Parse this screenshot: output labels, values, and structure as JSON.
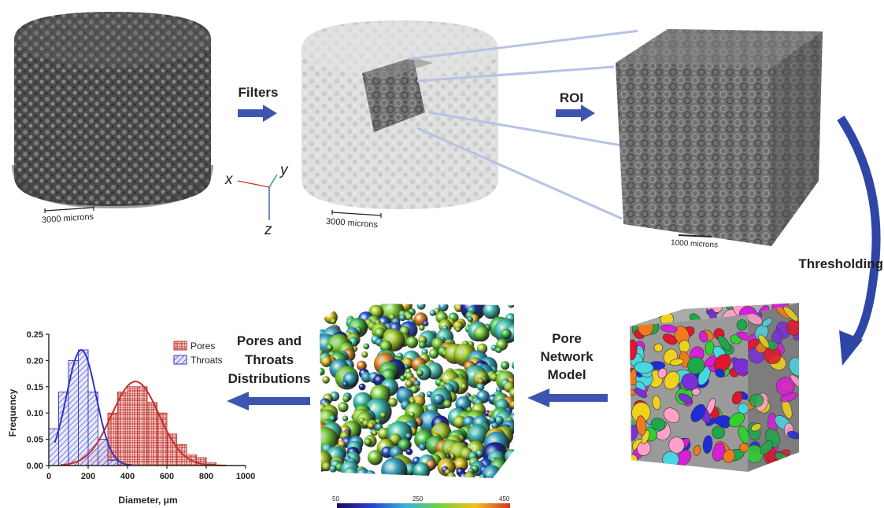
{
  "stages": {
    "filters": "Filters",
    "roi": "ROI",
    "thresholding": "Thresholding",
    "pore_network": [
      "Pore",
      "Network",
      "Model"
    ],
    "distributions": [
      "Pores and",
      "Throats",
      "Distributions"
    ]
  },
  "scalebars": {
    "raw": "3000 microns",
    "filtered": "3000 microns",
    "roi": "1000 microns"
  },
  "axes_triad": {
    "x": "x",
    "y": "y",
    "z": "z"
  },
  "colorbar": {
    "ticks": [
      "50",
      "250",
      "450"
    ]
  },
  "colors": {
    "arrow": "#3c56b0",
    "pores": "#c0302a",
    "throats": "#2e35c4",
    "sample_dark": "#5b5b5b",
    "sample_light": "#c9c9c9"
  },
  "chart_data": {
    "type": "bar",
    "xlabel": "Diameter, μm",
    "ylabel": "Frequency",
    "xlim": [
      0,
      1000
    ],
    "ylim": [
      0,
      0.25
    ],
    "xticks": [
      "0",
      "200",
      "400",
      "600",
      "800",
      "1000"
    ],
    "yticks": [
      "0.00",
      "0.05",
      "0.10",
      "0.15",
      "0.20",
      "0.25"
    ],
    "legend": "top-right",
    "bin_width": 50,
    "series": [
      {
        "name": "Pores",
        "color": "#c0302a",
        "bins": [
          125,
          175,
          225,
          275,
          325,
          375,
          425,
          475,
          525,
          575,
          625,
          675,
          725,
          775,
          825
        ],
        "values": [
          0.01,
          0.02,
          0.03,
          0.05,
          0.1,
          0.14,
          0.15,
          0.15,
          0.12,
          0.1,
          0.06,
          0.04,
          0.02,
          0.015,
          0.005
        ],
        "fit_mean": 440,
        "fit_sd": 120,
        "fit_peak": 0.16
      },
      {
        "name": "Throats",
        "color": "#2e35c4",
        "bins": [
          25,
          75,
          125,
          175,
          225,
          275,
          325
        ],
        "values": [
          0.07,
          0.14,
          0.2,
          0.22,
          0.14,
          0.05,
          0.01
        ],
        "fit_mean": 165,
        "fit_sd": 75,
        "fit_peak": 0.22
      }
    ]
  }
}
